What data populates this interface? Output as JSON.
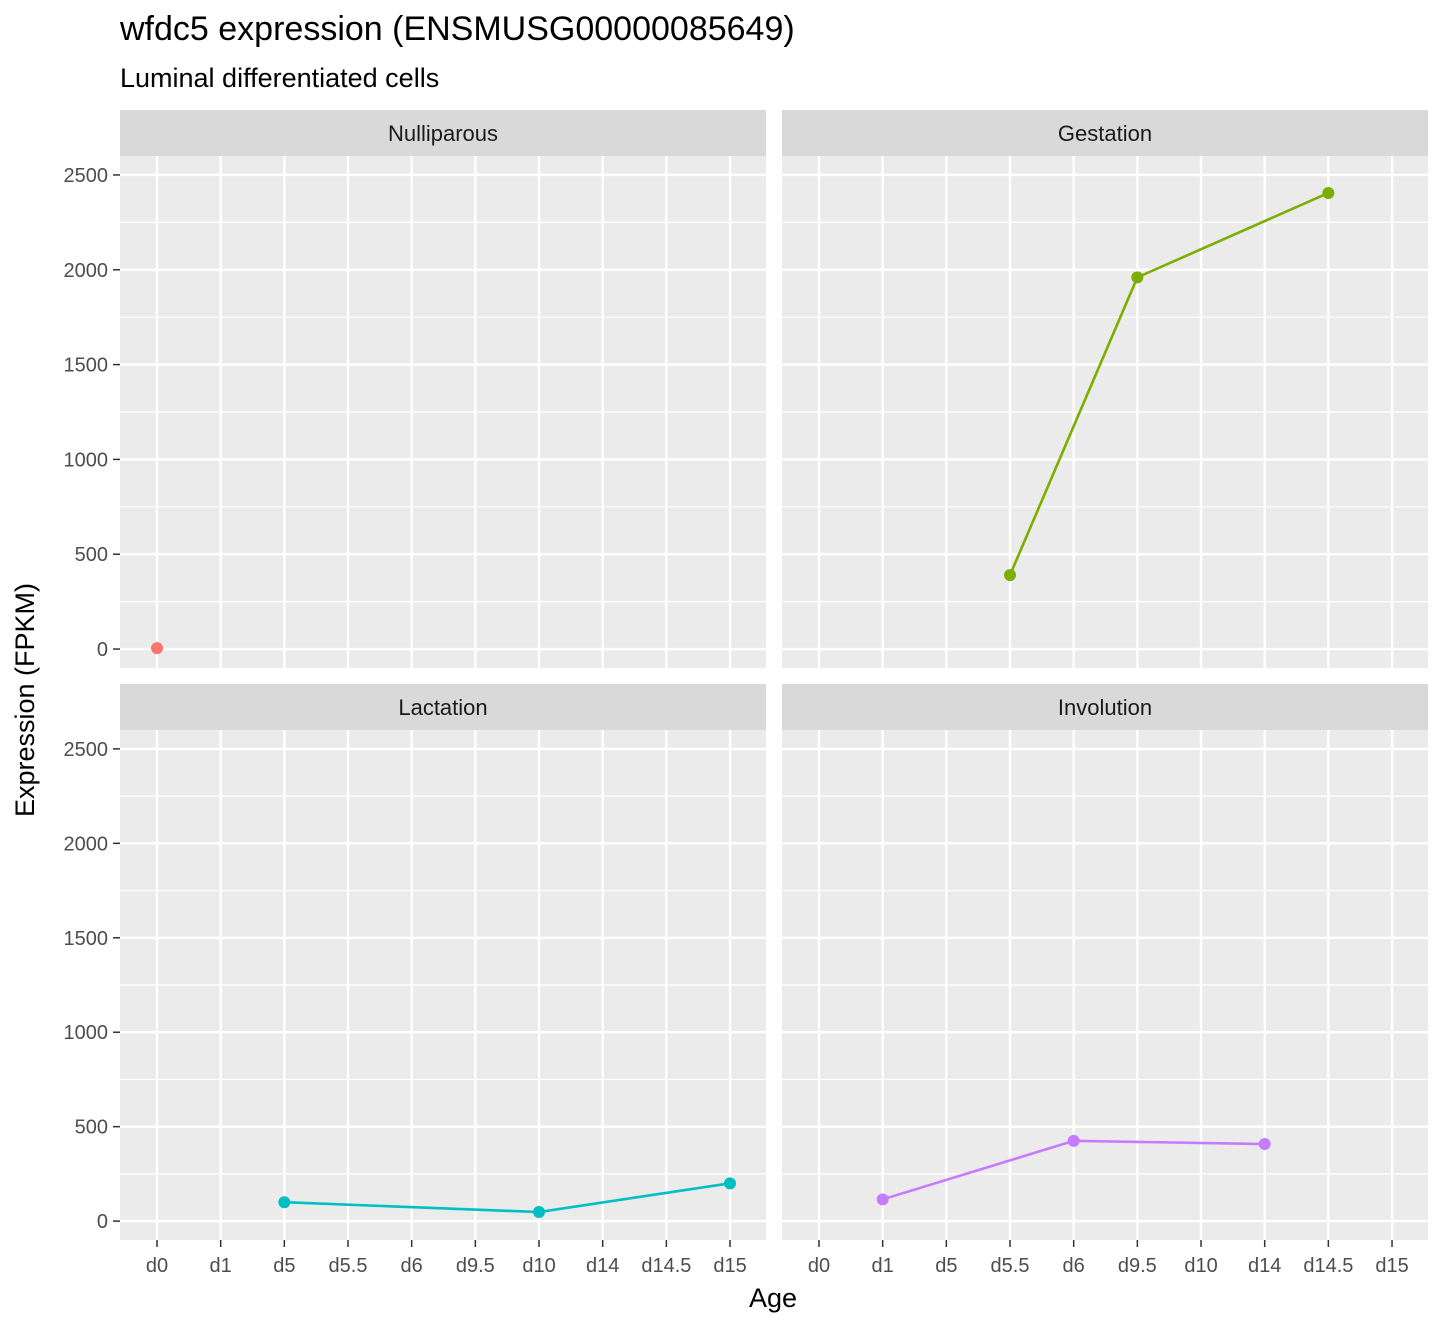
{
  "chart_data": {
    "type": "line",
    "title": "wfdc5 expression (ENSMUSG00000085649)",
    "subtitle": "Luminal differentiated cells",
    "xlabel": "Age",
    "ylabel": "Expression (FPKM)",
    "categories": [
      "d0",
      "d1",
      "d5",
      "d5.5",
      "d6",
      "d9.5",
      "d10",
      "d14",
      "d14.5",
      "d15"
    ],
    "ylim": [
      -100,
      2600
    ],
    "yticks": [
      0,
      500,
      1000,
      1500,
      2000,
      2500
    ],
    "grid": true,
    "legend": "none",
    "panels": [
      {
        "name": "Nulliparous",
        "color": "#F8766D",
        "x": [
          "d0"
        ],
        "y": [
          5
        ]
      },
      {
        "name": "Gestation",
        "color": "#7CAE00",
        "x": [
          "d5.5",
          "d9.5",
          "d14.5"
        ],
        "y": [
          390,
          1960,
          2405
        ]
      },
      {
        "name": "Lactation",
        "color": "#00BFC4",
        "x": [
          "d5",
          "d10",
          "d15"
        ],
        "y": [
          100,
          48,
          200
        ]
      },
      {
        "name": "Involution",
        "color": "#C77CFF",
        "x": [
          "d1",
          "d6",
          "d14"
        ],
        "y": [
          115,
          425,
          408
        ]
      }
    ]
  }
}
